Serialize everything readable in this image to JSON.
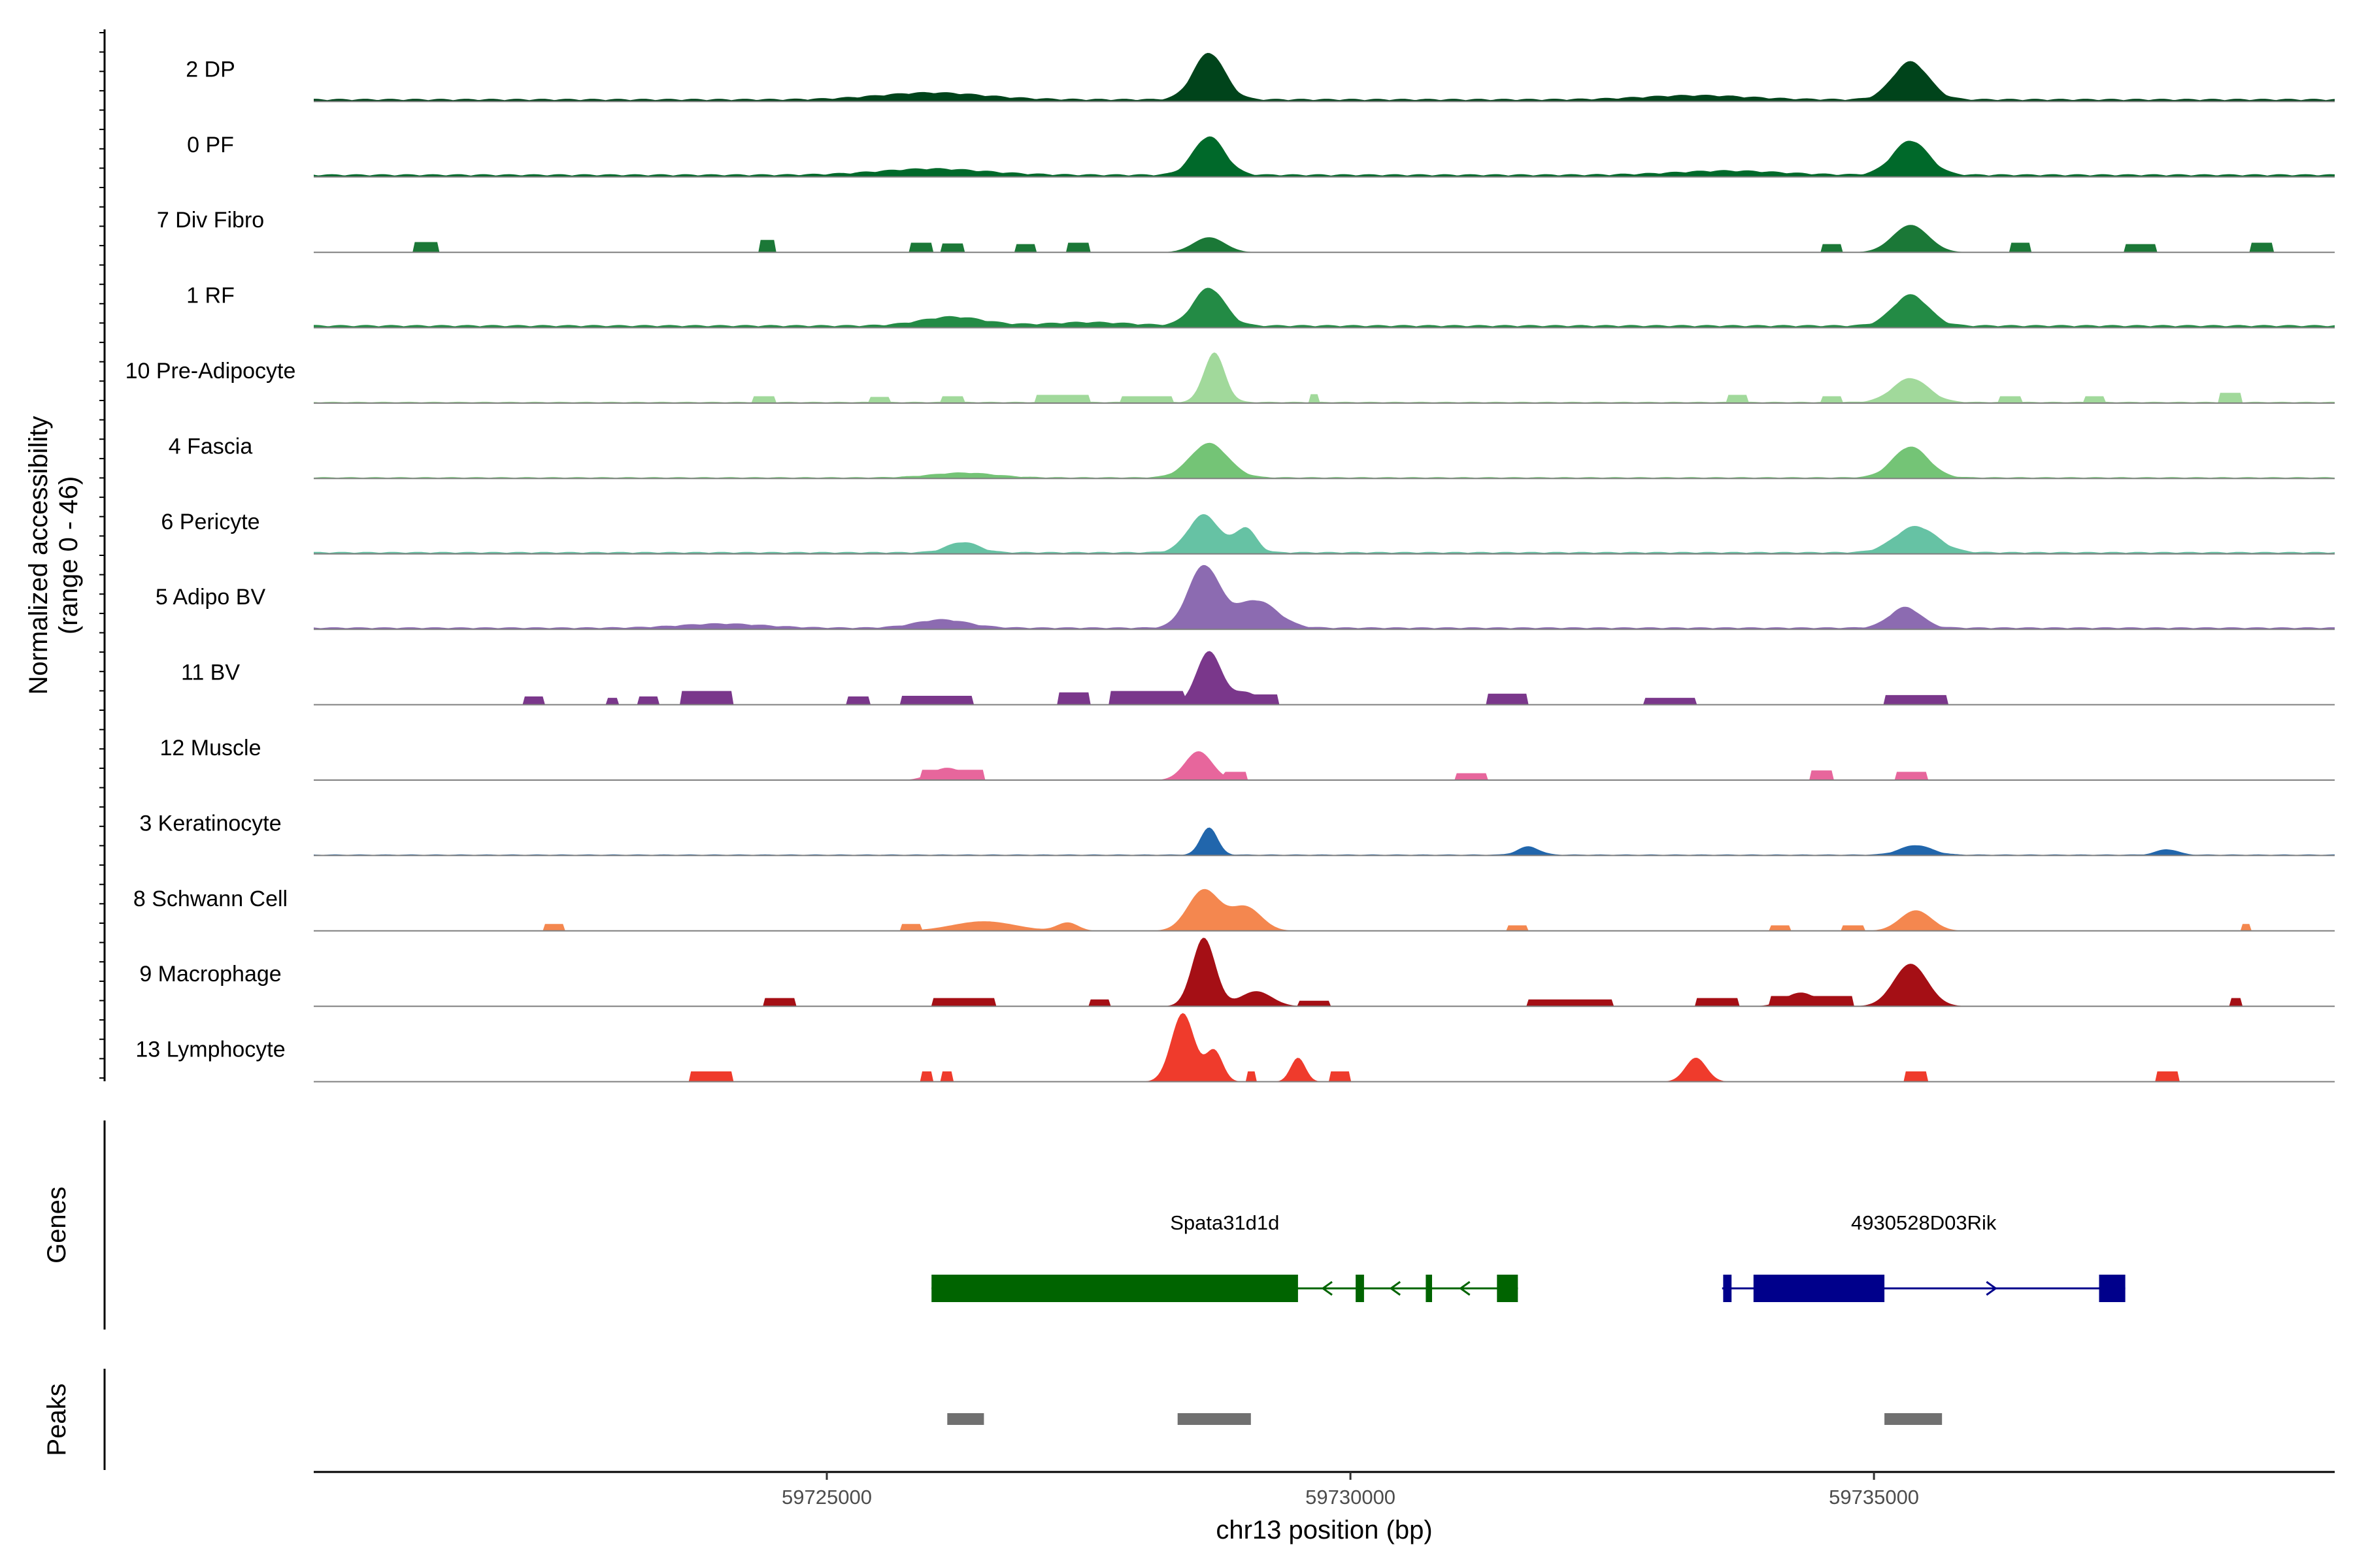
{
  "chart_data": {
    "type": "area",
    "genome_axis": {
      "xlabel": "chr13 position (bp)",
      "xlim": [
        59720100,
        59739400
      ],
      "ticks": [
        59725000,
        59730000,
        59735000
      ],
      "tick_labels": [
        "59725000",
        "59730000",
        "59735000"
      ]
    },
    "coverage": {
      "ylabel": "Normalized accessibility\n(range 0 - 46)",
      "ylim": [
        0,
        46
      ],
      "tracks": [
        {
          "name": "2 DP",
          "color": "#00441B",
          "peaks": [
            [
              59728650,
              0.68,
              150
            ],
            [
              59735350,
              0.55,
              170
            ],
            [
              59726000,
              0.1,
              500
            ],
            [
              59733300,
              0.06,
              500
            ]
          ],
          "blocks": [],
          "baseline": 0.04
        },
        {
          "name": "0 PF",
          "color": "#00692A",
          "peaks": [
            [
              59728650,
              0.56,
              150
            ],
            [
              59735350,
              0.5,
              170
            ],
            [
              59726000,
              0.09,
              500
            ],
            [
              59733600,
              0.06,
              500
            ]
          ],
          "blocks": [],
          "baseline": 0.04
        },
        {
          "name": "7 Div Fibro",
          "color": "#1B7837",
          "peaks": [
            [
              59728650,
              0.22,
              150
            ],
            [
              59735350,
              0.4,
              170
            ]
          ],
          "blocks": [
            [
              59721050,
              59721300,
              0.15
            ],
            [
              59724350,
              59724500,
              0.18
            ],
            [
              59725800,
              59726000,
              0.14
            ],
            [
              59726100,
              59726300,
              0.13
            ],
            [
              59726800,
              59727000,
              0.12
            ],
            [
              59727300,
              59727500,
              0.14
            ],
            [
              59734500,
              59734700,
              0.12
            ],
            [
              59736300,
              59736500,
              0.14
            ],
            [
              59737400,
              59737700,
              0.12
            ],
            [
              59738600,
              59738800,
              0.14
            ]
          ],
          "baseline": 0.0
        },
        {
          "name": "1 RF",
          "color": "#238B45",
          "peaks": [
            [
              59728650,
              0.55,
              150
            ],
            [
              59735350,
              0.45,
              170
            ],
            [
              59726200,
              0.13,
              300
            ],
            [
              59727500,
              0.05,
              400
            ]
          ],
          "blocks": [],
          "baseline": 0.04
        },
        {
          "name": "10 Pre-Adipocyte",
          "color": "#A1D99B",
          "peaks": [
            [
              59728700,
              0.72,
              100
            ],
            [
              59735350,
              0.35,
              170
            ]
          ],
          "blocks": [
            [
              59724300,
              59724500,
              0.1
            ],
            [
              59725400,
              59725600,
              0.09
            ],
            [
              59726100,
              59726300,
              0.1
            ],
            [
              59727000,
              59727500,
              0.12
            ],
            [
              59727800,
              59728300,
              0.1
            ],
            [
              59729600,
              59729700,
              0.13
            ],
            [
              59733600,
              59733800,
              0.12
            ],
            [
              59734500,
              59734700,
              0.1
            ],
            [
              59736200,
              59736400,
              0.1
            ],
            [
              59737000,
              59737200,
              0.1
            ],
            [
              59738300,
              59738500,
              0.15
            ]
          ],
          "baseline": 0.02
        },
        {
          "name": "4 Fascia",
          "color": "#74C476",
          "peaks": [
            [
              59728650,
              0.5,
              180
            ],
            [
              59735350,
              0.45,
              170
            ],
            [
              59726300,
              0.07,
              300
            ]
          ],
          "blocks": [],
          "baseline": 0.02
        },
        {
          "name": "6 Pericyte",
          "color": "#66C2A4",
          "peaks": [
            [
              59728600,
              0.55,
              150
            ],
            [
              59729000,
              0.35,
              100
            ],
            [
              59735400,
              0.38,
              200
            ],
            [
              59726300,
              0.15,
              150
            ]
          ],
          "blocks": [],
          "baseline": 0.03
        },
        {
          "name": "5 Adipo BV",
          "color": "#8C6BB1",
          "peaks": [
            [
              59728600,
              0.9,
              150
            ],
            [
              59729100,
              0.4,
              200
            ],
            [
              59735300,
              0.3,
              150
            ],
            [
              59726100,
              0.12,
              250
            ],
            [
              59724000,
              0.06,
              400
            ]
          ],
          "blocks": [],
          "baseline": 0.03
        },
        {
          "name": "11 BV",
          "color": "#7A378B",
          "peaks": [
            [
              59728650,
              0.78,
              120
            ],
            [
              59729000,
              0.18,
              120
            ]
          ],
          "blocks": [
            [
              59722100,
              59722300,
              0.12
            ],
            [
              59722900,
              59723000,
              0.1
            ],
            [
              59723200,
              59723400,
              0.12
            ],
            [
              59723600,
              59724100,
              0.2
            ],
            [
              59725200,
              59725400,
              0.12
            ],
            [
              59725700,
              59726400,
              0.13
            ],
            [
              59727200,
              59727500,
              0.18
            ],
            [
              59727700,
              59728400,
              0.2
            ],
            [
              59728900,
              59729300,
              0.15
            ],
            [
              59731300,
              59731700,
              0.16
            ],
            [
              59732800,
              59733300,
              0.1
            ],
            [
              59735100,
              59735700,
              0.14
            ]
          ],
          "baseline": 0.0
        },
        {
          "name": "12 Muscle",
          "color": "#E7669C",
          "peaks": [
            [
              59728550,
              0.42,
              130
            ],
            [
              59726150,
              0.18,
              150
            ]
          ],
          "blocks": [
            [
              59725900,
              59726500,
              0.15
            ],
            [
              59728800,
              59729000,
              0.12
            ],
            [
              59731000,
              59731300,
              0.1
            ],
            [
              59734400,
              59734600,
              0.14
            ],
            [
              59735200,
              59735500,
              0.12
            ]
          ],
          "baseline": 0.0
        },
        {
          "name": "3 Keratinocyte",
          "color": "#2166AC",
          "peaks": [
            [
              59728650,
              0.4,
              80
            ],
            [
              59731700,
              0.12,
              100
            ],
            [
              59735400,
              0.14,
              150
            ],
            [
              59737800,
              0.08,
              100
            ]
          ],
          "blocks": [],
          "baseline": 0.015
        },
        {
          "name": "8 Schwann Cell",
          "color": "#F4874F",
          "peaks": [
            [
              59728600,
              0.6,
              150
            ],
            [
              59729000,
              0.35,
              150
            ],
            [
              59735400,
              0.3,
              150
            ],
            [
              59726500,
              0.14,
              300
            ],
            [
              59727300,
              0.12,
              100
            ]
          ],
          "blocks": [
            [
              59722300,
              59722500,
              0.1
            ],
            [
              59725700,
              59725900,
              0.1
            ],
            [
              59731500,
              59731700,
              0.08
            ],
            [
              59734000,
              59734200,
              0.08
            ],
            [
              59734700,
              59734900,
              0.08
            ],
            [
              59738500,
              59738600,
              0.1
            ]
          ],
          "baseline": 0.0
        },
        {
          "name": "9 Macrophage",
          "color": "#A50F15",
          "peaks": [
            [
              59728600,
              1.0,
              110
            ],
            [
              59729100,
              0.22,
              150
            ],
            [
              59735350,
              0.62,
              160
            ],
            [
              59734300,
              0.2,
              150
            ]
          ],
          "blocks": [
            [
              59724400,
              59724700,
              0.12
            ],
            [
              59726000,
              59726600,
              0.12
            ],
            [
              59727500,
              59727700,
              0.1
            ],
            [
              59729500,
              59729800,
              0.08
            ],
            [
              59731700,
              59732500,
              0.1
            ],
            [
              59733300,
              59733700,
              0.12
            ],
            [
              59734000,
              59734800,
              0.15
            ],
            [
              59738400,
              59738500,
              0.12
            ]
          ],
          "baseline": 0.0
        },
        {
          "name": "13 Lymphocyte",
          "color": "#EF3B2C",
          "peaks": [
            [
              59728400,
              1.0,
              110
            ],
            [
              59728700,
              0.45,
              80
            ],
            [
              59729500,
              0.35,
              70
            ],
            [
              59733300,
              0.35,
              100
            ]
          ],
          "blocks": [
            [
              59723700,
              59724100,
              0.15
            ],
            [
              59725900,
              59726000,
              0.15
            ],
            [
              59726100,
              59726200,
              0.15
            ],
            [
              59729000,
              59729100,
              0.15
            ],
            [
              59729800,
              59730000,
              0.15
            ],
            [
              59735300,
              59735500,
              0.15
            ],
            [
              59737700,
              59737900,
              0.15
            ]
          ],
          "baseline": 0.0
        }
      ]
    },
    "genes": {
      "ylabel": "Genes",
      "items": [
        {
          "name": "Spata31d1d",
          "color": "#006400",
          "strand": "-",
          "start": 59726000,
          "end": 59731600,
          "exons": [
            [
              59726000,
              59729500
            ],
            [
              59730050,
              59730130
            ],
            [
              59730720,
              59730780
            ],
            [
              59731400,
              59731600
            ]
          ]
        },
        {
          "name": "4930528D03Rik",
          "color": "#00008B",
          "strand": "+",
          "start": 59733550,
          "end": 59737400,
          "exons": [
            [
              59733560,
              59733640
            ],
            [
              59733850,
              59735100
            ],
            [
              59737150,
              59737400
            ]
          ]
        }
      ]
    },
    "peaks": {
      "ylabel": "Peaks",
      "color": "#707070",
      "regions": [
        [
          59726150,
          59726500
        ],
        [
          59728350,
          59729050
        ],
        [
          59735100,
          59735650
        ]
      ]
    }
  }
}
